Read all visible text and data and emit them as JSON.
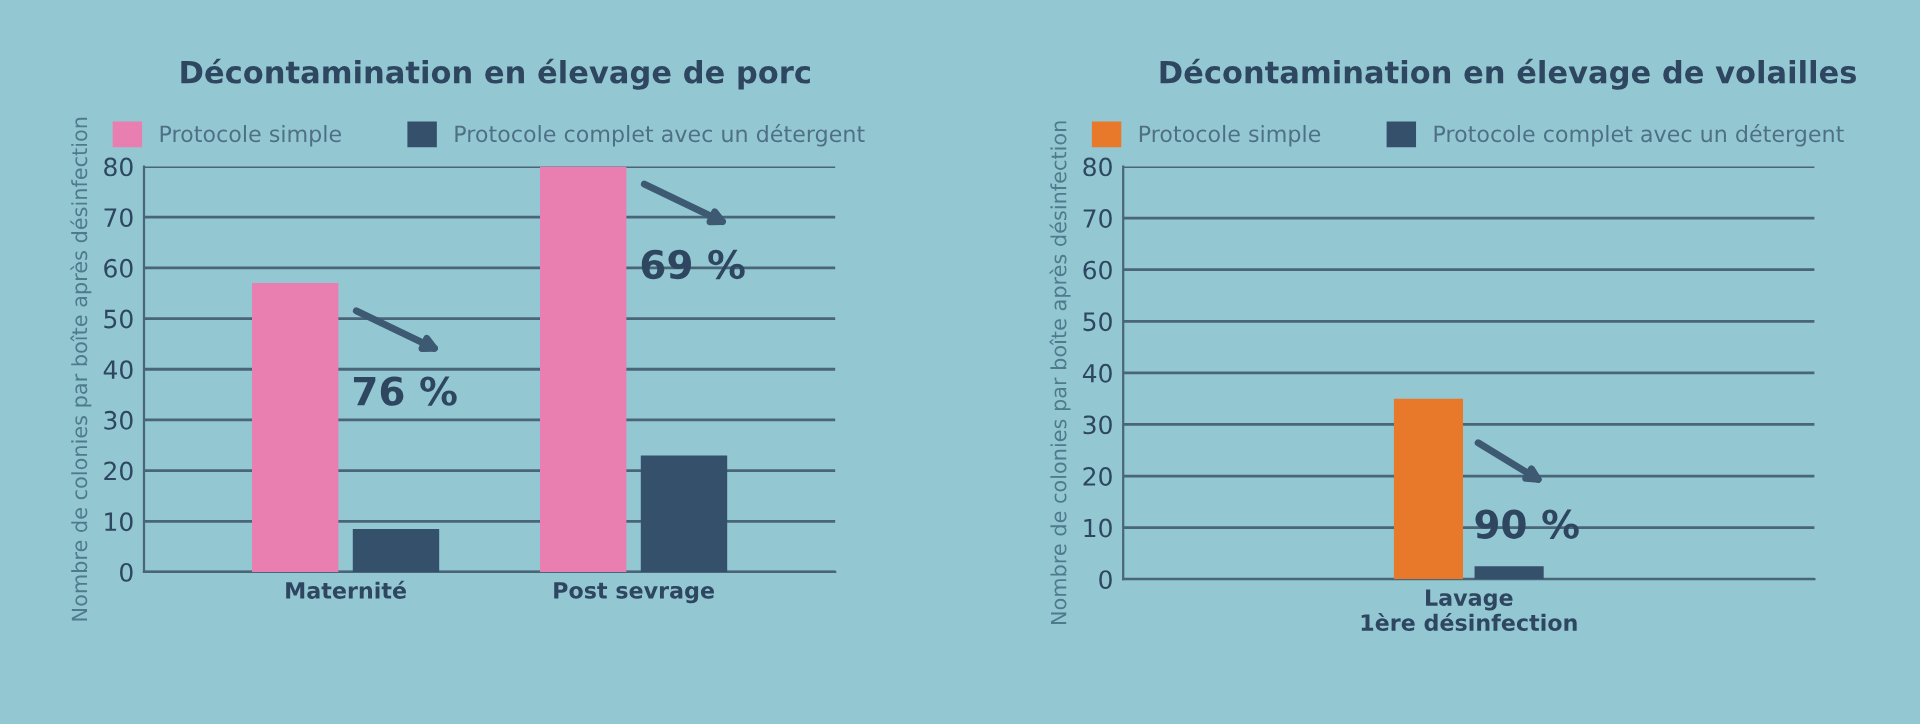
{
  "chart_data": [
    {
      "type": "bar",
      "title": "Décontamination en élevage de porc",
      "ylabel": "Nombre de colonies par boîte après désinfection",
      "categories": [
        "Maternité",
        "Post sevrage"
      ],
      "series": [
        {
          "name": "Protocole simple",
          "color": "#e87fb0",
          "values": [
            57,
            80
          ]
        },
        {
          "name": "Protocole complet avec un détergent",
          "color": "#34506a",
          "values": [
            8.5,
            23
          ]
        }
      ],
      "ylim": [
        0,
        80
      ],
      "yticks": [
        0,
        10,
        20,
        30,
        40,
        50,
        60,
        70,
        80
      ],
      "grid": "y",
      "legend": "top",
      "annotations": [
        {
          "text": "76 %",
          "x": "Maternité",
          "y": 35
        },
        {
          "text": "69 %",
          "x": "Post sevrage",
          "y": 60
        }
      ]
    },
    {
      "type": "bar",
      "title": "Décontamination en élevage de volailles",
      "ylabel": "Nombre de colonies par boîte après désinfection",
      "categories": [
        "Lavage\n1ère désinfection"
      ],
      "series": [
        {
          "name": "Protocole simple",
          "color": "#e8782a",
          "values": [
            35
          ]
        },
        {
          "name": "Protocole complet avec un détergent",
          "color": "#34506a",
          "values": [
            2.5
          ]
        }
      ],
      "ylim": [
        0,
        80
      ],
      "yticks": [
        0,
        10,
        20,
        30,
        40,
        50,
        60,
        70,
        80
      ],
      "grid": "y",
      "legend": "top",
      "annotations": [
        {
          "text": "90 %",
          "x": "Lavage\n1ère désinfection",
          "y": 10
        }
      ]
    }
  ]
}
